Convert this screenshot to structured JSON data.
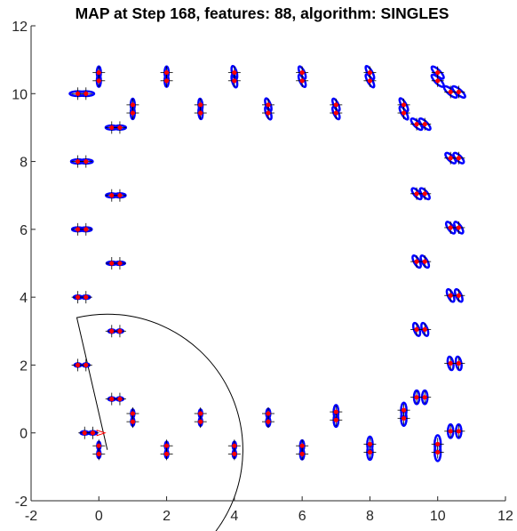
{
  "chart_data": {
    "type": "scatter",
    "title": "MAP at Step 168, features: 88, algorithm: SINGLES",
    "xlabel": "",
    "ylabel": "",
    "xlim": [
      -2,
      12
    ],
    "ylim": [
      -2,
      12
    ],
    "xticks": [
      "-2",
      "0",
      "2",
      "4",
      "6",
      "8",
      "10",
      "12"
    ],
    "yticks": [
      "-2",
      "0",
      "2",
      "4",
      "6",
      "8",
      "10",
      "12"
    ],
    "colors": {
      "ellipse": "#0000ff",
      "point": "#ff0000",
      "cross": "#000000",
      "sensor": "#000000"
    },
    "sensor_wedge": {
      "origin": [
        0.25,
        -0.5
      ],
      "radius": 4.0,
      "start_angle_deg": 103,
      "end_angle_deg": -45
    },
    "features": [
      {
        "x": -0.3,
        "y": 0.0,
        "sx": 0.12,
        "sy": 0.05,
        "rot": 0,
        "pair": "h"
      },
      {
        "x": 0.0,
        "y": -0.5,
        "sx": 0.05,
        "sy": 0.12,
        "rot": 0,
        "pair": "v"
      },
      {
        "x": 0.5,
        "y": 1.0,
        "sx": 0.1,
        "sy": 0.05,
        "rot": 0,
        "pair": "h"
      },
      {
        "x": 1.0,
        "y": 0.45,
        "sx": 0.05,
        "sy": 0.12,
        "rot": 0,
        "pair": "v"
      },
      {
        "x": 2.0,
        "y": -0.5,
        "sx": 0.05,
        "sy": 0.12,
        "rot": 0,
        "pair": "v"
      },
      {
        "x": 3.0,
        "y": 0.45,
        "sx": 0.05,
        "sy": 0.12,
        "rot": 0,
        "pair": "v"
      },
      {
        "x": 4.0,
        "y": -0.5,
        "sx": 0.05,
        "sy": 0.12,
        "rot": 0,
        "pair": "v"
      },
      {
        "x": 5.0,
        "y": 0.45,
        "sx": 0.06,
        "sy": 0.14,
        "rot": 0,
        "pair": "v"
      },
      {
        "x": 6.0,
        "y": -0.5,
        "sx": 0.06,
        "sy": 0.16,
        "rot": 0,
        "pair": "v"
      },
      {
        "x": 7.0,
        "y": 0.5,
        "sx": 0.07,
        "sy": 0.2,
        "rot": 0,
        "pair": "v"
      },
      {
        "x": 8.0,
        "y": -0.45,
        "sx": 0.08,
        "sy": 0.22,
        "rot": 0,
        "pair": "v"
      },
      {
        "x": 9.0,
        "y": 0.55,
        "sx": 0.08,
        "sy": 0.22,
        "rot": 0,
        "pair": "v"
      },
      {
        "x": 10.0,
        "y": -0.45,
        "sx": 0.09,
        "sy": 0.26,
        "rot": 0,
        "pair": "v"
      },
      {
        "x": 10.5,
        "y": 0.05,
        "sx": 0.08,
        "sy": 0.2,
        "rot": 0,
        "pair": "h"
      },
      {
        "x": 9.5,
        "y": 1.05,
        "sx": 0.08,
        "sy": 0.2,
        "rot": 0,
        "pair": "h"
      },
      {
        "x": 10.5,
        "y": 2.05,
        "sx": 0.08,
        "sy": 0.2,
        "rot": 10,
        "pair": "h"
      },
      {
        "x": 9.5,
        "y": 3.05,
        "sx": 0.08,
        "sy": 0.2,
        "rot": 20,
        "pair": "h"
      },
      {
        "x": 10.5,
        "y": 4.05,
        "sx": 0.08,
        "sy": 0.2,
        "rot": 25,
        "pair": "h"
      },
      {
        "x": 9.5,
        "y": 5.05,
        "sx": 0.08,
        "sy": 0.2,
        "rot": 30,
        "pair": "h"
      },
      {
        "x": 10.5,
        "y": 6.05,
        "sx": 0.08,
        "sy": 0.2,
        "rot": 35,
        "pair": "h"
      },
      {
        "x": 9.5,
        "y": 7.05,
        "sx": 0.08,
        "sy": 0.2,
        "rot": 40,
        "pair": "h"
      },
      {
        "x": 10.5,
        "y": 8.1,
        "sx": 0.08,
        "sy": 0.2,
        "rot": 45,
        "pair": "h"
      },
      {
        "x": 9.5,
        "y": 9.1,
        "sx": 0.08,
        "sy": 0.22,
        "rot": 45,
        "pair": "h"
      },
      {
        "x": 10.5,
        "y": 10.05,
        "sx": 0.08,
        "sy": 0.24,
        "rot": 50,
        "pair": "h"
      },
      {
        "x": 10.0,
        "y": 10.5,
        "sx": 0.08,
        "sy": 0.24,
        "rot": 45,
        "pair": "v"
      },
      {
        "x": 9.0,
        "y": 9.55,
        "sx": 0.07,
        "sy": 0.22,
        "rot": 30,
        "pair": "v"
      },
      {
        "x": 8.0,
        "y": 10.5,
        "sx": 0.07,
        "sy": 0.22,
        "rot": 30,
        "pair": "v"
      },
      {
        "x": 7.0,
        "y": 9.55,
        "sx": 0.07,
        "sy": 0.2,
        "rot": 25,
        "pair": "v"
      },
      {
        "x": 6.0,
        "y": 10.5,
        "sx": 0.07,
        "sy": 0.2,
        "rot": 25,
        "pair": "v"
      },
      {
        "x": 5.0,
        "y": 9.55,
        "sx": 0.07,
        "sy": 0.2,
        "rot": 20,
        "pair": "v"
      },
      {
        "x": 4.0,
        "y": 10.5,
        "sx": 0.07,
        "sy": 0.2,
        "rot": 15,
        "pair": "v"
      },
      {
        "x": 3.0,
        "y": 9.55,
        "sx": 0.06,
        "sy": 0.18,
        "rot": 5,
        "pair": "v"
      },
      {
        "x": 2.0,
        "y": 10.5,
        "sx": 0.06,
        "sy": 0.18,
        "rot": 0,
        "pair": "v"
      },
      {
        "x": 1.0,
        "y": 9.55,
        "sx": 0.06,
        "sy": 0.18,
        "rot": 0,
        "pair": "v"
      },
      {
        "x": 0.0,
        "y": 10.5,
        "sx": 0.06,
        "sy": 0.18,
        "rot": 0,
        "pair": "v"
      },
      {
        "x": 0.5,
        "y": 9.0,
        "sx": 0.18,
        "sy": 0.06,
        "rot": 0,
        "pair": "h"
      },
      {
        "x": -0.5,
        "y": 10.0,
        "sx": 0.24,
        "sy": 0.07,
        "rot": 0,
        "pair": "h"
      },
      {
        "x": -0.5,
        "y": 8.0,
        "sx": 0.2,
        "sy": 0.06,
        "rot": 0,
        "pair": "h"
      },
      {
        "x": 0.5,
        "y": 7.0,
        "sx": 0.17,
        "sy": 0.06,
        "rot": 0,
        "pair": "h"
      },
      {
        "x": -0.5,
        "y": 6.0,
        "sx": 0.17,
        "sy": 0.06,
        "rot": 0,
        "pair": "h"
      },
      {
        "x": 0.5,
        "y": 5.0,
        "sx": 0.15,
        "sy": 0.05,
        "rot": 0,
        "pair": "h"
      },
      {
        "x": -0.5,
        "y": 4.0,
        "sx": 0.12,
        "sy": 0.05,
        "rot": 0,
        "pair": "h"
      },
      {
        "x": 0.5,
        "y": 3.0,
        "sx": 0.1,
        "sy": 0.05,
        "rot": 0,
        "pair": "h"
      },
      {
        "x": -0.5,
        "y": 2.0,
        "sx": 0.1,
        "sy": 0.05,
        "rot": 0,
        "pair": "h"
      }
    ]
  }
}
